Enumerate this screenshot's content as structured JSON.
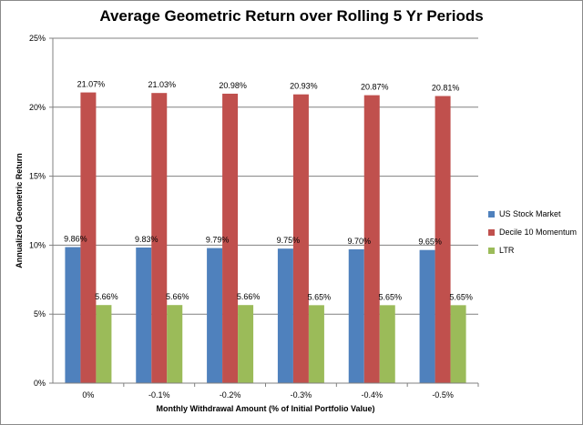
{
  "chart_data": {
    "type": "bar",
    "title": "Average Geometric Return over Rolling 5 Yr Periods",
    "xlabel": "Monthly Withdrawal Amount (% of Initial Portfolio Value)",
    "ylabel": "Annualized Geometric Return",
    "categories": [
      "0%",
      "-0.1%",
      "-0.2%",
      "-0.3%",
      "-0.4%",
      "-0.5%"
    ],
    "ylim": [
      0,
      25
    ],
    "yticks": [
      "0%",
      "5%",
      "10%",
      "15%",
      "20%",
      "25%"
    ],
    "grid": "horizontal",
    "legend_position": "right",
    "series": [
      {
        "name": "US Stock Market",
        "color": "#4f81bd",
        "values": [
          9.86,
          9.83,
          9.79,
          9.75,
          9.7,
          9.65
        ],
        "labels": [
          "9.86%",
          "9.83%",
          "9.79%",
          "9.75%",
          "9.70%",
          "9.65%"
        ]
      },
      {
        "name": "Decile 10 Momentum",
        "color": "#c0504d",
        "values": [
          21.07,
          21.03,
          20.98,
          20.93,
          20.87,
          20.81
        ],
        "labels": [
          "21.07%",
          "21.03%",
          "20.98%",
          "20.93%",
          "20.87%",
          "20.81%"
        ]
      },
      {
        "name": "LTR",
        "color": "#9bbb59",
        "values": [
          5.66,
          5.66,
          5.66,
          5.65,
          5.65,
          5.65
        ],
        "labels": [
          "5.66%",
          "5.66%",
          "5.66%",
          "5.65%",
          "5.65%",
          "5.65%"
        ]
      }
    ]
  }
}
